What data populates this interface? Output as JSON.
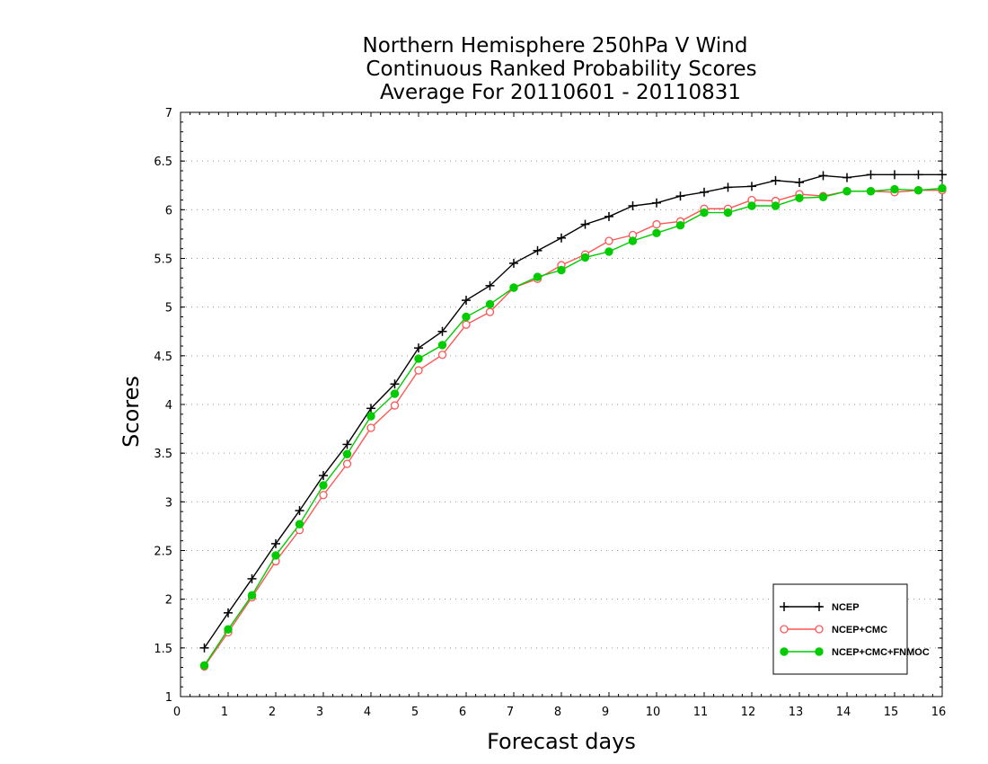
{
  "chart_data": {
    "type": "line",
    "title": [
      "Northern Hemisphere 250hPa V Wind",
      "Continuous Ranked Probability Scores",
      "Average For 20110601 - 20110831"
    ],
    "xlabel": "Forecast days",
    "ylabel": "Scores",
    "xlim": [
      0,
      16
    ],
    "ylim": [
      1,
      7
    ],
    "xticks": [
      "0",
      "1",
      "2",
      "3",
      "4",
      "5",
      "6",
      "7",
      "8",
      "9",
      "10",
      "11",
      "12",
      "13",
      "14",
      "15",
      "16"
    ],
    "yticks": [
      "1",
      "1.5",
      "2",
      "2.5",
      "3",
      "3.5",
      "4",
      "4.5",
      "5",
      "5.5",
      "6",
      "6.5",
      "7"
    ],
    "grid": "horizontal dotted",
    "legend_position": "bottom-right",
    "x": [
      0.5,
      1,
      1.5,
      2,
      2.5,
      3,
      3.5,
      4,
      4.5,
      5,
      5.5,
      6,
      6.5,
      7,
      7.5,
      8,
      8.5,
      9,
      9.5,
      10,
      10.5,
      11,
      11.5,
      12,
      12.5,
      13,
      13.5,
      14,
      14.5,
      15,
      15.5,
      16
    ],
    "series": [
      {
        "name": "NCEP",
        "color": "#000000",
        "marker": "plus",
        "values": [
          1.5,
          1.86,
          2.21,
          2.57,
          2.91,
          3.27,
          3.59,
          3.96,
          4.21,
          4.58,
          4.75,
          5.07,
          5.22,
          5.45,
          5.58,
          5.71,
          5.85,
          5.93,
          6.04,
          6.07,
          6.14,
          6.18,
          6.23,
          6.24,
          6.3,
          6.28,
          6.35,
          6.33,
          6.36,
          6.36,
          6.36,
          6.36
        ]
      },
      {
        "name": "NCEP+CMC",
        "color": "#ff5555",
        "marker": "open-circle",
        "values": [
          1.31,
          1.66,
          2.02,
          2.39,
          2.71,
          3.07,
          3.39,
          3.76,
          3.99,
          4.35,
          4.51,
          4.82,
          4.95,
          5.2,
          5.29,
          5.43,
          5.54,
          5.68,
          5.74,
          5.85,
          5.88,
          6.01,
          6.01,
          6.1,
          6.09,
          6.16,
          6.14,
          6.19,
          6.19,
          6.18,
          6.2,
          6.2
        ]
      },
      {
        "name": "NCEP+CMC+FNMOC",
        "color": "#00cc00",
        "marker": "filled-circle",
        "values": [
          1.32,
          1.69,
          2.04,
          2.45,
          2.77,
          3.17,
          3.49,
          3.88,
          4.11,
          4.47,
          4.61,
          4.9,
          5.03,
          5.2,
          5.31,
          5.38,
          5.51,
          5.57,
          5.68,
          5.76,
          5.84,
          5.97,
          5.97,
          6.04,
          6.04,
          6.12,
          6.13,
          6.19,
          6.19,
          6.21,
          6.2,
          6.22
        ]
      }
    ]
  }
}
